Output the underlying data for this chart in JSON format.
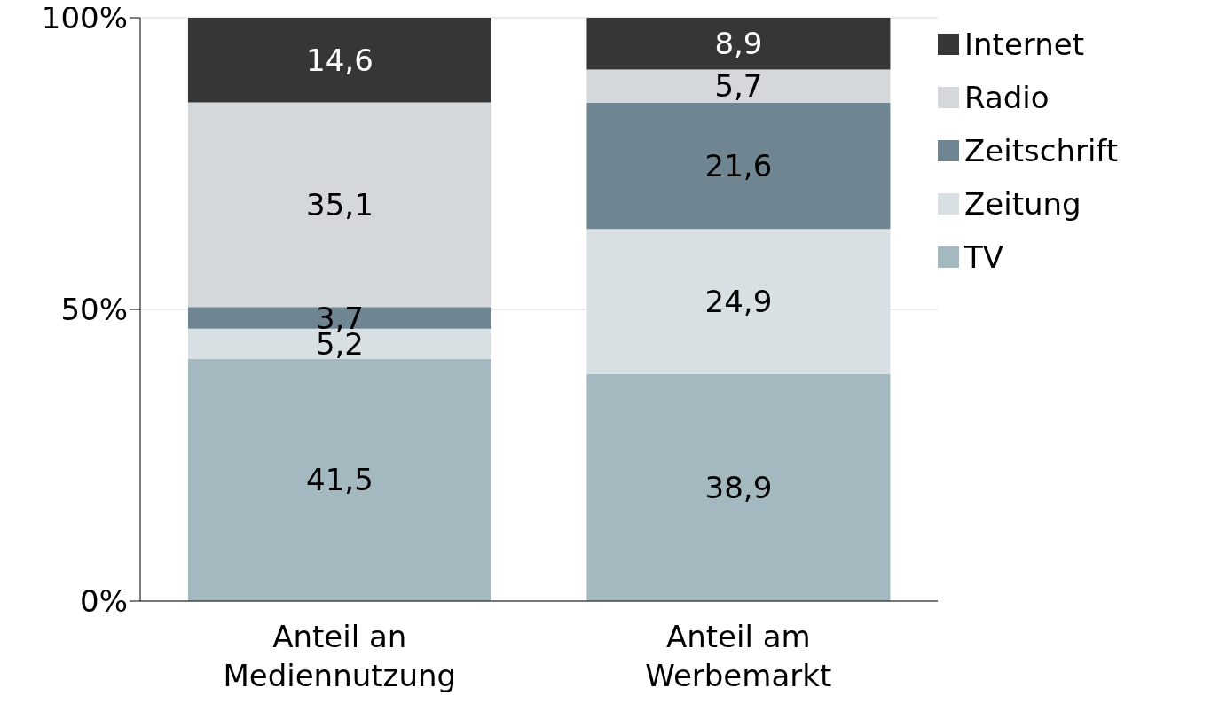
{
  "chart_data": {
    "type": "bar",
    "stacked": true,
    "categories": [
      "Anteil an\nMediennutzung",
      "Anteil am\nWerbemarkt"
    ],
    "series": [
      {
        "name": "TV",
        "color": "#a3b8bf",
        "values": [
          41.5,
          38.9
        ],
        "value_labels": [
          "41,5",
          "38,9"
        ]
      },
      {
        "name": "Zeitung",
        "color": "#d9e0e3",
        "values": [
          5.2,
          24.9
        ],
        "value_labels": [
          "5,2",
          "24,9"
        ]
      },
      {
        "name": "Zeitschrift",
        "color": "#6f8591",
        "values": [
          3.7,
          21.6
        ],
        "value_labels": [
          "3,7",
          "21,6"
        ]
      },
      {
        "name": "Radio",
        "color": "#d4d8db",
        "values": [
          35.1,
          5.7
        ],
        "value_labels": [
          "35,1",
          "5,7"
        ]
      },
      {
        "name": "Internet",
        "color": "#363636",
        "values": [
          14.6,
          8.9
        ],
        "value_labels": [
          "14,6",
          "8,9"
        ]
      }
    ],
    "ylim": [
      0,
      100
    ],
    "yticks": [
      {
        "value": 0,
        "label": "0%"
      },
      {
        "value": 50,
        "label": "50%"
      },
      {
        "value": 100,
        "label": "100%"
      }
    ],
    "grid": "y",
    "legend": "top right"
  }
}
